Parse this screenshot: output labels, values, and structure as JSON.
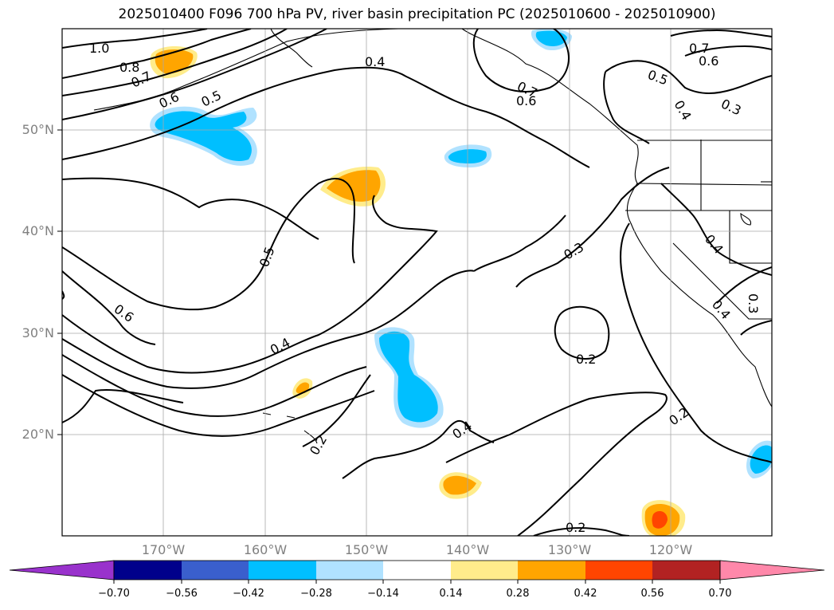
{
  "title": "2025010400 F096 700 hPa PV, river basin precipitation PC (2025010600 - 2025010900)",
  "latitude_labels": [
    "50°N",
    "40°N",
    "30°N",
    "20°N"
  ],
  "longitude_labels": [
    "170°W",
    "160°W",
    "150°W",
    "140°W",
    "130°W",
    "120°W"
  ],
  "contour_labels": [
    "1.0",
    "0.8",
    "0.7",
    "0.6",
    "0.5",
    "0.4",
    "0.7",
    "0.6",
    "0.7",
    "0.6",
    "0.5",
    "0.4",
    "0.3",
    "0.5",
    "0.6",
    "0.4",
    "0.3",
    "0.4",
    "0.4",
    "0.3",
    "0.2",
    "0.2",
    "0.4",
    "0.2",
    "0.2"
  ],
  "colorbar": {
    "ticks": [
      "−0.70",
      "−0.56",
      "−0.42",
      "−0.28",
      "−0.14",
      "0.14",
      "0.28",
      "0.42",
      "0.56",
      "0.70"
    ],
    "colors": [
      "#9932cc",
      "#00008b",
      "#3a5fcd",
      "#00bfff",
      "#b0e2ff",
      "#ffffff",
      "#ffec8b",
      "#ffa500",
      "#ff4500",
      "#b22222",
      "#ff88aa"
    ]
  },
  "shading_colors": {
    "light_blue": "#b0e2ff",
    "blue": "#00bfff",
    "light_yellow": "#ffec8b",
    "orange": "#ffa500",
    "red_orange": "#ff4500"
  },
  "grid": true
}
